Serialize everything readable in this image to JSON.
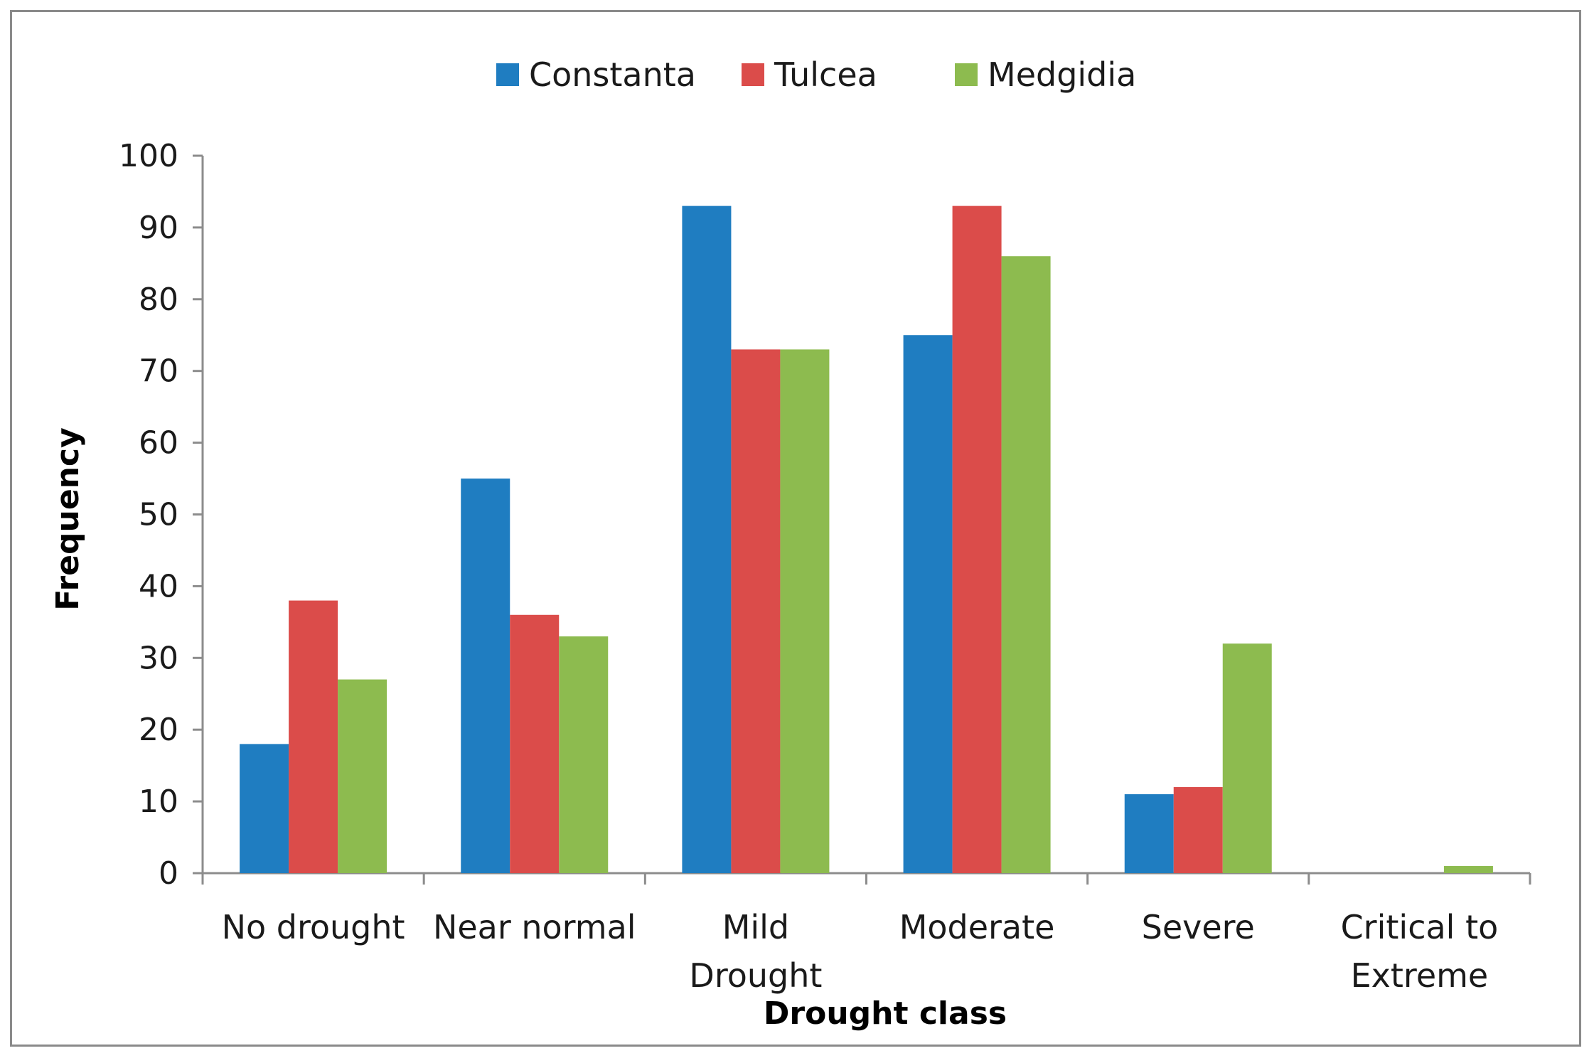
{
  "chart_data": {
    "type": "bar",
    "title": "",
    "xlabel": "Drought class",
    "ylabel": "Frequency",
    "ylim": [
      0,
      100
    ],
    "yticks": [
      0,
      10,
      20,
      30,
      40,
      50,
      60,
      70,
      80,
      90,
      100
    ],
    "ytick_labels": [
      "0",
      "10",
      "20",
      "30",
      "40",
      "50",
      "60",
      "70",
      "80",
      "90",
      "100"
    ],
    "categories": [
      [
        "No drought"
      ],
      [
        "Near normal"
      ],
      [
        "Mild",
        "Drought"
      ],
      [
        "Moderate"
      ],
      [
        "Severe"
      ],
      [
        "Critical to",
        "Extreme"
      ]
    ],
    "series": [
      {
        "name": "Constanta",
        "color": "#1F7DC1",
        "values": [
          18,
          55,
          93,
          75,
          11,
          0
        ]
      },
      {
        "name": "Tulcea",
        "color": "#DB4C4A",
        "values": [
          38,
          36,
          73,
          93,
          12,
          0
        ]
      },
      {
        "name": "Medgidia",
        "color": "#8DBB4F",
        "values": [
          27,
          33,
          73,
          86,
          32,
          1
        ]
      }
    ],
    "legend_position": "top-center",
    "grid": false
  }
}
